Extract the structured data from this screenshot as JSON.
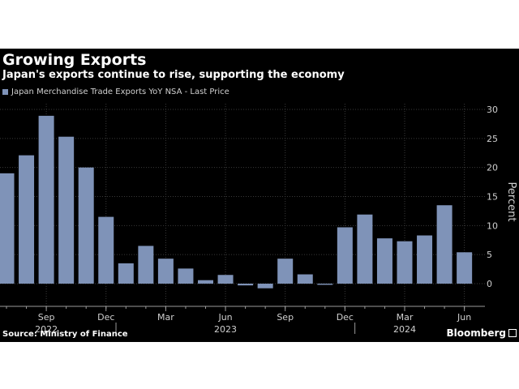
{
  "header": {
    "title": "Growing Exports",
    "subtitle": "Japan's exports continue to rise, supporting the economy"
  },
  "footer": {
    "source": "Source: Ministry of Finance",
    "brand": "Bloomberg"
  },
  "colors": {
    "background": "#000000",
    "bar": "#7f93b8",
    "grid": "#3a3a3a",
    "text": "#cfcfcf"
  },
  "chart_data": {
    "type": "bar",
    "title": "Growing Exports",
    "subtitle": "Japan's exports continue to rise, supporting the economy",
    "xlabel": "",
    "ylabel": "Percent",
    "ylim": [
      -2,
      32
    ],
    "yticks": [
      0,
      5,
      10,
      15,
      20,
      25,
      30
    ],
    "grid": true,
    "legend_position": "top-left",
    "categories": [
      "2022-07",
      "2022-08",
      "2022-09",
      "2022-10",
      "2022-11",
      "2022-12",
      "2023-01",
      "2023-02",
      "2023-03",
      "2023-04",
      "2023-05",
      "2023-06",
      "2023-07",
      "2023-08",
      "2023-09",
      "2023-10",
      "2023-11",
      "2023-12",
      "2024-01",
      "2024-02",
      "2024-03",
      "2024-04",
      "2024-05",
      "2024-06"
    ],
    "series": [
      {
        "name": "Japan Merchandise Trade Exports YoY NSA - Last Price",
        "values": [
          19.0,
          22.1,
          28.9,
          25.3,
          20.0,
          11.5,
          3.5,
          6.5,
          4.3,
          2.6,
          0.6,
          1.5,
          -0.3,
          -0.8,
          4.3,
          1.6,
          -0.2,
          9.7,
          11.9,
          7.8,
          7.3,
          8.3,
          13.5,
          5.4
        ]
      }
    ],
    "xtick_labels": [
      {
        "index": 2,
        "label": "Sep"
      },
      {
        "index": 5,
        "label": "Dec"
      },
      {
        "index": 8,
        "label": "Mar"
      },
      {
        "index": 11,
        "label": "Jun"
      },
      {
        "index": 14,
        "label": "Sep"
      },
      {
        "index": 17,
        "label": "Dec"
      },
      {
        "index": 20,
        "label": "Mar"
      },
      {
        "index": 23,
        "label": "Jun"
      }
    ],
    "year_labels": [
      {
        "index": 2,
        "label": "2022"
      },
      {
        "index": 11,
        "label": "2023"
      },
      {
        "index": 20,
        "label": "2024"
      }
    ]
  }
}
